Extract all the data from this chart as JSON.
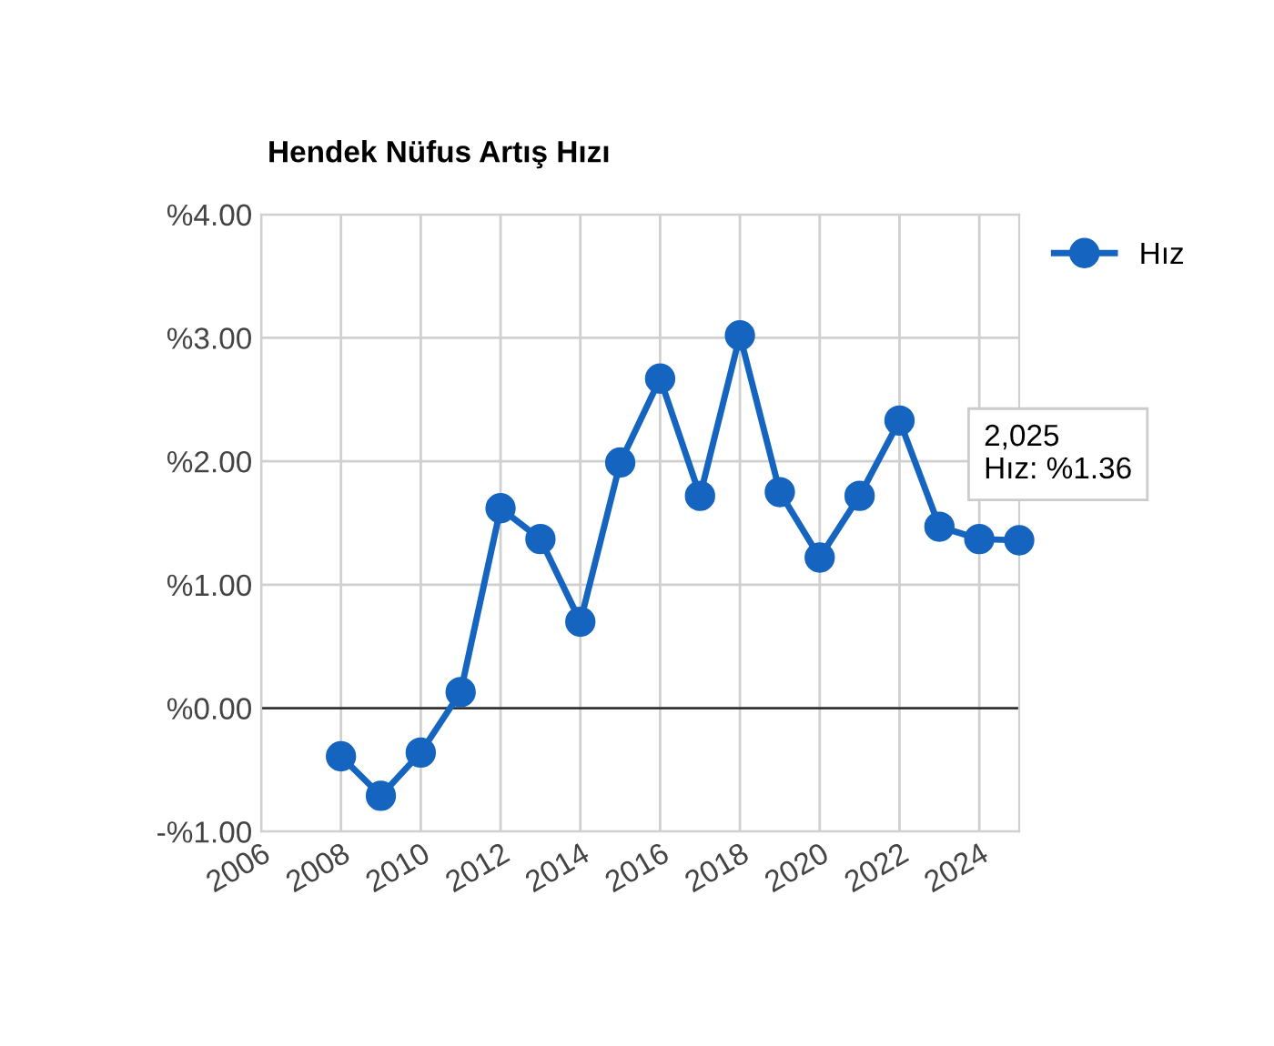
{
  "chart_data": {
    "type": "line",
    "title": "Hendek Nüfus Artış Hızı",
    "x": [
      2008,
      2009,
      2010,
      2011,
      2012,
      2013,
      2014,
      2015,
      2016,
      2017,
      2018,
      2019,
      2020,
      2021,
      2022,
      2023,
      2024,
      2025
    ],
    "series": [
      {
        "name": "Hız",
        "color": "#1565c0",
        "values": [
          -0.39,
          -0.71,
          -0.36,
          0.13,
          1.62,
          1.37,
          0.7,
          1.99,
          2.67,
          1.72,
          3.02,
          1.75,
          1.22,
          1.72,
          2.33,
          1.47,
          1.37,
          1.36
        ]
      }
    ],
    "xlim": [
      2006,
      2025
    ],
    "xticks": [
      2006,
      2008,
      2010,
      2012,
      2014,
      2016,
      2018,
      2020,
      2022,
      2024
    ],
    "ylim": [
      -1,
      4
    ],
    "yticks": [
      {
        "value": -1,
        "label": "-%1.00"
      },
      {
        "value": 0,
        "label": "%0.00"
      },
      {
        "value": 1,
        "label": "%1.00"
      },
      {
        "value": 2,
        "label": "%2.00"
      },
      {
        "value": 3,
        "label": "%3.00"
      },
      {
        "value": 4,
        "label": "%4.00"
      }
    ],
    "ref_lines": [
      {
        "axis": "y",
        "value": 0,
        "color": "#333333"
      }
    ],
    "annotations": [
      {
        "text": "2,025\nHız: %1.36",
        "x": 2025,
        "y": 1.36
      }
    ],
    "grid": true,
    "legend": "top right",
    "marker": "circle",
    "line_style": "solid"
  }
}
